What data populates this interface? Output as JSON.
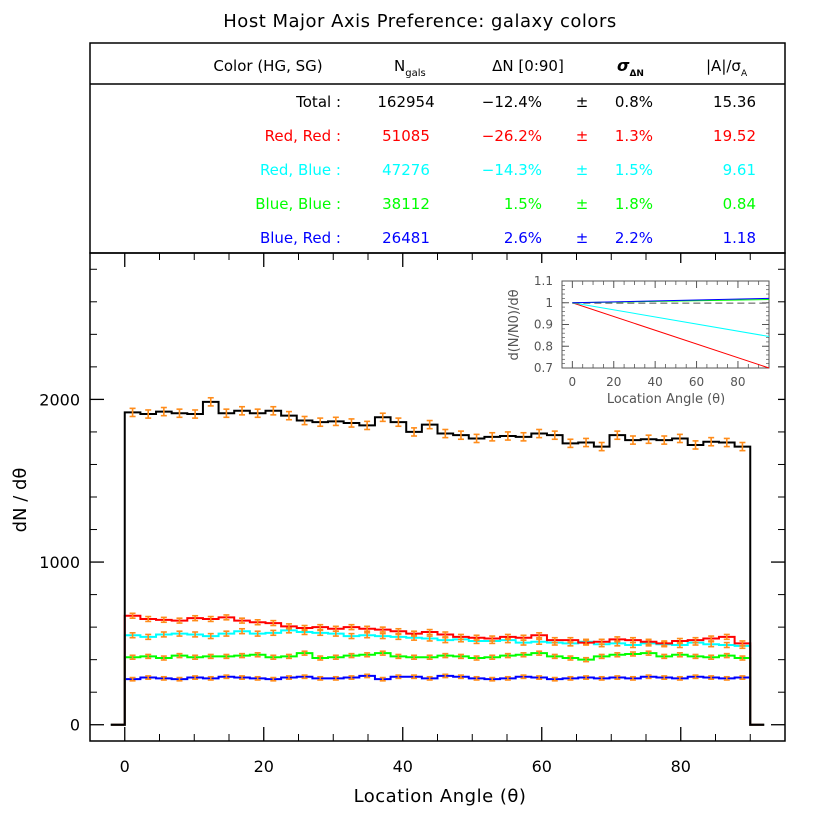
{
  "title": "Host Major Axis Preference: galaxy colors",
  "table": {
    "headers": {
      "color": "Color (HG, SG)",
      "ngals_main": "N",
      "ngals_sub": "gals",
      "dn": "ΔN [0:90]",
      "sigma_main": "σ",
      "sigma_sub": "ΔN",
      "a_main": "|A|/σ",
      "a_sub": "A"
    },
    "rows": [
      {
        "label": "Total :",
        "n": "162954",
        "dn": "−12.4%",
        "pm": "±",
        "sig": "0.8%",
        "a": "15.36",
        "color": "#000000"
      },
      {
        "label": "Red, Red :",
        "n": "51085",
        "dn": "−26.2%",
        "pm": "±",
        "sig": "1.3%",
        "a": "19.52",
        "color": "#ff0000"
      },
      {
        "label": "Red, Blue :",
        "n": "47276",
        "dn": "−14.3%",
        "pm": "±",
        "sig": "1.5%",
        "a": "9.61",
        "color": "#00ffff"
      },
      {
        "label": "Blue, Blue :",
        "n": "38112",
        "dn": "1.5%",
        "pm": "±",
        "sig": "1.8%",
        "a": "0.84",
        "color": "#00ff00"
      },
      {
        "label": "Blue, Red :",
        "n": "26481",
        "dn": "2.6%",
        "pm": "±",
        "sig": "2.2%",
        "a": "1.18",
        "color": "#0000ff"
      }
    ]
  },
  "chart_data": [
    {
      "type": "line",
      "xlabel": "Location Angle (θ)",
      "ylabel": "dN / dθ",
      "xlim": [
        -5,
        95
      ],
      "ylim": [
        -100,
        2900
      ],
      "xticks": [
        0,
        20,
        40,
        60,
        80
      ],
      "yticks": [
        0,
        1000,
        2000
      ],
      "errorbar_color": "#ff8c1a",
      "grid": false,
      "x_bin_edges": [
        0,
        2.25,
        4.5,
        6.75,
        9,
        11.25,
        13.5,
        15.75,
        18,
        20.25,
        22.5,
        24.75,
        27,
        29.25,
        31.5,
        33.75,
        36,
        38.25,
        40.5,
        42.75,
        45,
        47.25,
        49.5,
        51.75,
        54,
        56.25,
        58.5,
        60.75,
        63,
        65.25,
        67.5,
        69.75,
        72,
        74.25,
        76.5,
        78.75,
        81,
        83.25,
        85.5,
        87.75,
        90
      ],
      "series": [
        {
          "name": "Total",
          "color": "#000000",
          "values": [
            1920,
            1910,
            1925,
            1915,
            1910,
            1985,
            1915,
            1930,
            1915,
            1930,
            1900,
            1870,
            1860,
            1865,
            1855,
            1840,
            1890,
            1860,
            1800,
            1845,
            1790,
            1780,
            1760,
            1770,
            1775,
            1770,
            1790,
            1780,
            1730,
            1735,
            1710,
            1780,
            1750,
            1755,
            1750,
            1760,
            1720,
            1740,
            1735,
            1710,
            1730
          ],
          "errors": [
            25,
            25,
            25,
            25,
            25,
            25,
            25,
            25,
            25,
            25,
            25,
            25,
            25,
            25,
            25,
            25,
            25,
            25,
            25,
            25,
            25,
            25,
            25,
            25,
            25,
            25,
            25,
            25,
            25,
            25,
            25,
            25,
            25,
            25,
            25,
            25,
            25,
            25,
            25,
            25,
            25
          ]
        },
        {
          "name": "Red, Red",
          "color": "#ff0000",
          "values": [
            670,
            650,
            645,
            640,
            655,
            650,
            660,
            640,
            630,
            625,
            605,
            595,
            600,
            590,
            600,
            590,
            585,
            575,
            560,
            570,
            555,
            540,
            535,
            530,
            540,
            535,
            550,
            520,
            520,
            505,
            510,
            525,
            520,
            510,
            500,
            515,
            520,
            530,
            540,
            500,
            510
          ],
          "errors": [
            15,
            15,
            15,
            15,
            15,
            15,
            15,
            15,
            15,
            15,
            15,
            15,
            15,
            15,
            15,
            15,
            15,
            15,
            15,
            15,
            15,
            15,
            15,
            15,
            15,
            15,
            15,
            15,
            15,
            15,
            15,
            15,
            15,
            15,
            15,
            15,
            15,
            15,
            15,
            15,
            15
          ]
        },
        {
          "name": "Red, Blue",
          "color": "#00ffff",
          "values": [
            550,
            540,
            555,
            560,
            555,
            545,
            560,
            575,
            560,
            565,
            580,
            570,
            565,
            560,
            545,
            550,
            545,
            540,
            535,
            530,
            520,
            525,
            515,
            515,
            520,
            505,
            510,
            505,
            500,
            510,
            495,
            500,
            490,
            500,
            495,
            490,
            505,
            495,
            490,
            485,
            495
          ],
          "errors": [
            15,
            15,
            15,
            15,
            15,
            15,
            15,
            15,
            15,
            15,
            15,
            15,
            15,
            15,
            15,
            15,
            15,
            15,
            15,
            15,
            15,
            15,
            15,
            15,
            15,
            15,
            15,
            15,
            15,
            15,
            15,
            15,
            15,
            15,
            15,
            15,
            15,
            15,
            15,
            15,
            15
          ]
        },
        {
          "name": "Blue, Blue",
          "color": "#00ff00",
          "values": [
            415,
            420,
            410,
            425,
            415,
            420,
            420,
            425,
            430,
            415,
            420,
            440,
            410,
            415,
            425,
            430,
            440,
            420,
            415,
            415,
            425,
            420,
            410,
            415,
            425,
            430,
            440,
            420,
            410,
            400,
            420,
            430,
            435,
            440,
            420,
            430,
            420,
            415,
            425,
            410,
            420
          ],
          "errors": [
            12,
            12,
            12,
            12,
            12,
            12,
            12,
            12,
            12,
            12,
            12,
            12,
            12,
            12,
            12,
            12,
            12,
            12,
            12,
            12,
            12,
            12,
            12,
            12,
            12,
            12,
            12,
            12,
            12,
            12,
            12,
            12,
            12,
            12,
            12,
            12,
            12,
            12,
            12,
            12,
            12
          ]
        },
        {
          "name": "Blue, Red",
          "color": "#0000ff",
          "values": [
            280,
            290,
            285,
            280,
            290,
            285,
            295,
            290,
            285,
            280,
            290,
            295,
            285,
            285,
            290,
            300,
            280,
            295,
            295,
            285,
            300,
            295,
            285,
            280,
            285,
            295,
            290,
            280,
            285,
            290,
            285,
            290,
            285,
            295,
            290,
            285,
            295,
            290,
            285,
            290,
            300
          ],
          "errors": [
            10,
            10,
            10,
            10,
            10,
            10,
            10,
            10,
            10,
            10,
            10,
            10,
            10,
            10,
            10,
            10,
            10,
            10,
            10,
            10,
            10,
            10,
            10,
            10,
            10,
            10,
            10,
            10,
            10,
            10,
            10,
            10,
            10,
            10,
            10,
            10,
            10,
            10,
            10,
            10,
            10
          ]
        }
      ]
    },
    {
      "type": "line",
      "xlabel": "Location Angle (θ)",
      "ylabel": "d(N/N0)/dθ",
      "xlim": [
        -5,
        95
      ],
      "ylim": [
        0.7,
        1.1
      ],
      "xticks": [
        0,
        20,
        40,
        60,
        80
      ],
      "yticks": [
        0.7,
        0.8,
        0.9,
        1,
        1.1
      ],
      "ytick_labels": [
        "0.7",
        "0.8",
        "0.9",
        "1",
        "1.1"
      ],
      "grid": false,
      "series": [
        {
          "name": "Red, Red",
          "color": "#ff0000",
          "style": "solid",
          "x": [
            0,
            95
          ],
          "y": [
            1.0,
            0.7
          ]
        },
        {
          "name": "Red, Blue",
          "color": "#00ffff",
          "style": "solid",
          "x": [
            0,
            95
          ],
          "y": [
            1.0,
            0.845
          ]
        },
        {
          "name": "Total",
          "color": "#808080",
          "style": "dashed",
          "x": [
            0,
            95
          ],
          "y": [
            0.998,
            0.998
          ]
        },
        {
          "name": "Blue, Blue",
          "color": "#00ff00",
          "style": "solid",
          "x": [
            0,
            95
          ],
          "y": [
            1.0,
            1.015
          ]
        },
        {
          "name": "Blue, Red",
          "color": "#0000ff",
          "style": "solid",
          "x": [
            0,
            95
          ],
          "y": [
            1.0,
            1.02
          ]
        }
      ]
    }
  ]
}
